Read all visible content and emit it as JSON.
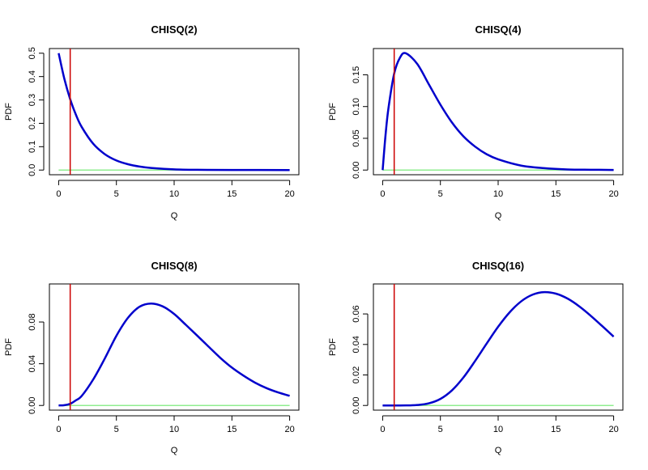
{
  "chart_data": [
    {
      "type": "line",
      "title": "CHISQ(2)",
      "xlabel": "Q",
      "ylabel": "PDF",
      "xlim": [
        0,
        20
      ],
      "ylim": [
        0,
        0.5
      ],
      "x_ticks": [
        0,
        5,
        10,
        15,
        20
      ],
      "y_ticks": [
        0.0,
        0.1,
        0.2,
        0.3,
        0.4,
        0.5
      ],
      "y_tick_labels": [
        "0.0",
        "0.1",
        "0.2",
        "0.3",
        "0.4",
        "0.5"
      ],
      "vline_x": 1,
      "hline_y": 0,
      "series": [
        {
          "color": "#0000cc",
          "x": [
            0,
            0.5,
            1,
            1.5,
            2,
            3,
            4,
            5,
            6,
            7,
            8,
            10,
            12,
            15,
            20
          ],
          "y": [
            0.5,
            0.389,
            0.303,
            0.236,
            0.184,
            0.112,
            0.068,
            0.041,
            0.025,
            0.015,
            0.009,
            0.003,
            0.001,
            0.0003,
            2e-05
          ]
        }
      ],
      "colors": {
        "curve": "#0000cc",
        "vline": "#cc0000",
        "hline": "#90ee90"
      }
    },
    {
      "type": "line",
      "title": "CHISQ(4)",
      "xlabel": "Q",
      "ylabel": "PDF",
      "xlim": [
        0,
        20
      ],
      "ylim": [
        0,
        0.184
      ],
      "x_ticks": [
        0,
        5,
        10,
        15,
        20
      ],
      "y_ticks": [
        0.0,
        0.05,
        0.1,
        0.15
      ],
      "y_tick_labels": [
        "0.00",
        "0.05",
        "0.10",
        "0.15"
      ],
      "vline_x": 1,
      "hline_y": 0,
      "series": [
        {
          "color": "#0000cc",
          "x": [
            0,
            0.25,
            0.5,
            1,
            1.5,
            2,
            3,
            4,
            5,
            6,
            7,
            8,
            9,
            10,
            12,
            14,
            16,
            18,
            20
          ],
          "y": [
            0,
            0.055,
            0.097,
            0.152,
            0.177,
            0.184,
            0.167,
            0.135,
            0.103,
            0.075,
            0.053,
            0.037,
            0.025,
            0.017,
            0.007,
            0.003,
            0.001,
            0.0005,
            0.0002
          ]
        }
      ],
      "colors": {
        "curve": "#0000cc",
        "vline": "#cc0000",
        "hline": "#90ee90"
      }
    },
    {
      "type": "line",
      "title": "CHISQ(8)",
      "xlabel": "Q",
      "ylabel": "PDF",
      "xlim": [
        0,
        20
      ],
      "ylim": [
        0,
        0.112
      ],
      "x_ticks": [
        0,
        5,
        10,
        15,
        20
      ],
      "y_ticks": [
        0.0,
        0.04,
        0.08
      ],
      "y_tick_labels": [
        "0.00",
        "0.04",
        "0.08"
      ],
      "vline_x": 1,
      "hline_y": 0,
      "series": [
        {
          "color": "#0000cc",
          "x": [
            0,
            0.5,
            1,
            1.5,
            2,
            3,
            4,
            5,
            6,
            7,
            8,
            9,
            10,
            11,
            12,
            13,
            14,
            15,
            16,
            17,
            18,
            19,
            20
          ],
          "y": [
            0,
            0.0003,
            0.0016,
            0.005,
            0.0092,
            0.0251,
            0.0451,
            0.0668,
            0.084,
            0.0946,
            0.0977,
            0.095,
            0.0877,
            0.0774,
            0.0669,
            0.0562,
            0.0456,
            0.0363,
            0.0286,
            0.0219,
            0.0166,
            0.0125,
            0.0092
          ]
        }
      ],
      "colors": {
        "curve": "#0000cc",
        "vline": "#cc0000",
        "hline": "#90ee90"
      }
    },
    {
      "type": "line",
      "title": "CHISQ(16)",
      "xlabel": "Q",
      "ylabel": "PDF",
      "xlim": [
        0,
        20
      ],
      "ylim": [
        0,
        0.0766
      ],
      "x_ticks": [
        0,
        5,
        10,
        15,
        20
      ],
      "y_ticks": [
        0.0,
        0.02,
        0.04,
        0.06
      ],
      "y_tick_labels": [
        "0.00",
        "0.02",
        "0.04",
        "0.06"
      ],
      "vline_x": 1,
      "hline_y": 0,
      "series": [
        {
          "color": "#0000cc",
          "x": [
            0,
            1,
            2,
            3,
            4,
            5,
            6,
            7,
            8,
            9,
            10,
            11,
            12,
            13,
            14,
            15,
            16,
            17,
            18,
            19,
            20
          ],
          "y": [
            0,
            0,
            2e-05,
            0.0003,
            0.0014,
            0.0043,
            0.0099,
            0.0184,
            0.0291,
            0.0405,
            0.0516,
            0.0611,
            0.0683,
            0.0727,
            0.0743,
            0.0733,
            0.0701,
            0.0651,
            0.0589,
            0.0521,
            0.0451
          ]
        }
      ],
      "colors": {
        "curve": "#0000cc",
        "vline": "#cc0000",
        "hline": "#90ee90"
      }
    }
  ]
}
